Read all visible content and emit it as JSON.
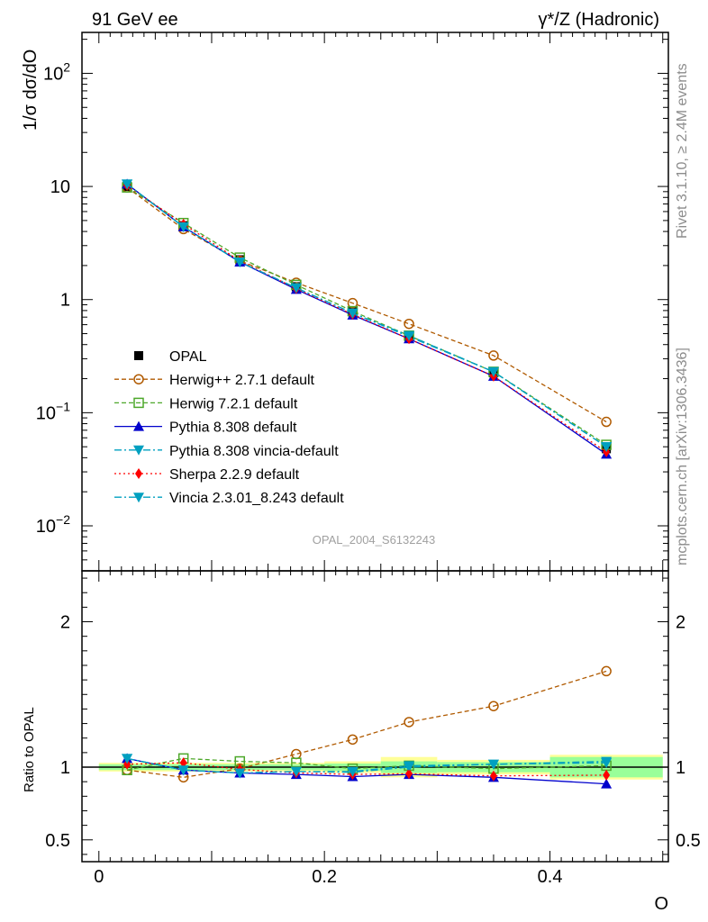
{
  "header": {
    "left": "91 GeV ee",
    "right": "γ*/Z (Hadronic)"
  },
  "side_labels": {
    "rivet": "Rivet 3.1.10, ≥ 2.4M events",
    "mcplots": "mcplots.cern.ch [arXiv:1306.3436]"
  },
  "watermark": "OPAL_2004_S6132243",
  "chart_data": [
    {
      "type": "line",
      "ylabel": "1/σ dσ/dO",
      "xlabel": "O",
      "yscale": "log",
      "ylim": [
        0.004,
        230
      ],
      "xlim": [
        -0.015,
        0.505
      ],
      "ytick_labels": [
        "10^-2",
        "10^-1",
        "1",
        "10",
        "10^2"
      ],
      "legend_position": "lower-left",
      "x": [
        0.025,
        0.075,
        0.125,
        0.175,
        0.225,
        0.275,
        0.35,
        0.45
      ],
      "reference": {
        "name": "OPAL",
        "values": [
          10.0,
          4.5,
          2.25,
          1.3,
          0.78,
          0.47,
          0.225,
          0.048
        ]
      },
      "series": [
        {
          "name": "Herwig++ 2.7.1 default",
          "color": "#b05a00",
          "marker": "open-circle",
          "dash": "5,3",
          "values": [
            9.8,
            4.2,
            2.2,
            1.41,
            0.93,
            0.61,
            0.32,
            0.083
          ]
        },
        {
          "name": "Herwig 7.2.1 default",
          "color": "#4da82a",
          "marker": "open-square",
          "dash": "5,3",
          "values": [
            9.8,
            4.75,
            2.35,
            1.35,
            0.79,
            0.48,
            0.23,
            0.052
          ]
        },
        {
          "name": "Pythia 8.308 default",
          "color": "#0000cc",
          "marker": "filled-triangle-up",
          "dash": "",
          "values": [
            10.5,
            4.4,
            2.15,
            1.23,
            0.73,
            0.45,
            0.21,
            0.043
          ]
        },
        {
          "name": "Pythia 8.308 vincia-default",
          "color": "#00a0c0",
          "marker": "filled-triangle-down",
          "dash": "8,3,2,3",
          "values": [
            10.5,
            4.4,
            2.15,
            1.27,
            0.76,
            0.47,
            0.23,
            0.05
          ]
        },
        {
          "name": "Sherpa 2.2.9 default",
          "color": "#ff0000",
          "marker": "filled-diamond",
          "dash": "2,3",
          "values": [
            10.2,
            4.65,
            2.2,
            1.25,
            0.74,
            0.45,
            0.21,
            0.045
          ]
        },
        {
          "name": "Vincia 2.3.01_8.243 default",
          "color": "#00a0c0",
          "marker": "filled-triangle-down",
          "dash": "8,3,2,3",
          "values": [
            10.5,
            4.4,
            2.15,
            1.27,
            0.76,
            0.48,
            0.23,
            0.05
          ]
        }
      ]
    },
    {
      "type": "line",
      "ylabel": "Ratio to OPAL",
      "xlabel": "O",
      "ylim": [
        0.35,
        2.35
      ],
      "xlim": [
        -0.015,
        0.505
      ],
      "ytick_labels": [
        "0.5",
        "1",
        "2"
      ],
      "xtick_labels": [
        "0",
        "0.2",
        "0.4"
      ],
      "x": [
        0.025,
        0.075,
        0.125,
        0.175,
        0.225,
        0.275,
        0.35,
        0.45
      ],
      "bins": [
        [
          0,
          0.05
        ],
        [
          0.05,
          0.1
        ],
        [
          0.1,
          0.15
        ],
        [
          0.15,
          0.2
        ],
        [
          0.2,
          0.25
        ],
        [
          0.25,
          0.3
        ],
        [
          0.3,
          0.4
        ],
        [
          0.4,
          0.5
        ]
      ],
      "band_inner": [
        0.02,
        0.02,
        0.02,
        0.02,
        0.025,
        0.04,
        0.035,
        0.07
      ],
      "band_outer": [
        0.03,
        0.03,
        0.03,
        0.03,
        0.04,
        0.07,
        0.05,
        0.085
      ],
      "series": [
        {
          "name": "Herwig++ 2.7.1 default",
          "values": [
            0.98,
            0.93,
            0.99,
            1.09,
            1.19,
            1.31,
            1.42,
            1.66
          ]
        },
        {
          "name": "Herwig 7.2.1 default",
          "values": [
            0.98,
            1.06,
            1.04,
            1.03,
            0.99,
            1.01,
            0.99,
            1.01
          ]
        },
        {
          "name": "Pythia 8.308 default",
          "values": [
            1.06,
            0.98,
            0.96,
            0.95,
            0.935,
            0.95,
            0.93,
            0.885
          ]
        },
        {
          "name": "Pythia 8.308 vincia-default",
          "values": [
            1.06,
            0.98,
            0.96,
            0.97,
            0.965,
            1.0,
            1.02,
            1.04
          ]
        },
        {
          "name": "Sherpa 2.2.9 default",
          "values": [
            1.02,
            1.03,
            0.985,
            0.96,
            0.95,
            0.955,
            0.94,
            0.945
          ]
        },
        {
          "name": "Vincia 2.3.01_8.243 default",
          "values": [
            1.06,
            0.98,
            0.96,
            0.97,
            0.97,
            1.01,
            1.02,
            1.03
          ]
        }
      ]
    }
  ]
}
